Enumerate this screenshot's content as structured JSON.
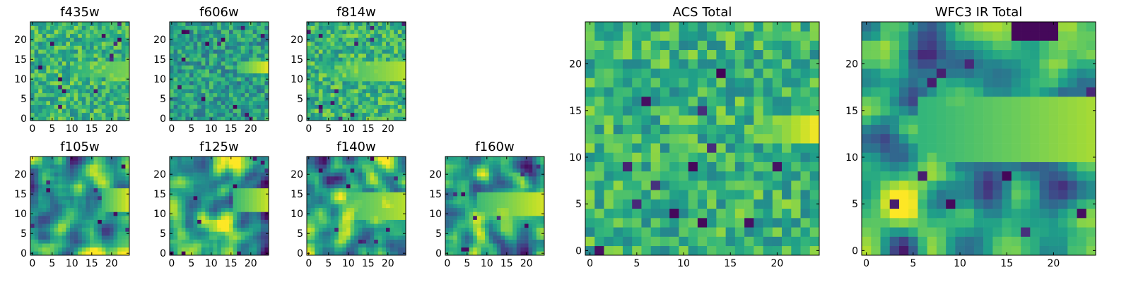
{
  "chart_data": {
    "type": "heatmap",
    "colormap": "viridis",
    "grid": false,
    "legend": "none",
    "grid_size": [
      25,
      25
    ],
    "panels": [
      {
        "id": "f435w",
        "title": "f435w",
        "xlim": [
          0,
          24
        ],
        "ylim": [
          0,
          24
        ],
        "xticks": [
          0,
          5,
          10,
          15,
          20
        ],
        "yticks": [
          0,
          5,
          10,
          15,
          20
        ],
        "texture": "noisy-uniform",
        "bright_region": {
          "x": [
            10,
            24
          ],
          "y": [
            11,
            14
          ],
          "level": 0.55
        }
      },
      {
        "id": "f606w",
        "title": "f606w",
        "xlim": [
          0,
          24
        ],
        "ylim": [
          0,
          24
        ],
        "xticks": [
          0,
          5,
          10,
          15,
          20
        ],
        "yticks": [
          0,
          5,
          10,
          15,
          20
        ],
        "texture": "noisy-dim",
        "bright_region": {
          "x": [
            17,
            24
          ],
          "y": [
            12,
            14
          ],
          "level": 0.9
        }
      },
      {
        "id": "f814w",
        "title": "f814w",
        "xlim": [
          0,
          24
        ],
        "ylim": [
          0,
          24
        ],
        "xticks": [
          0,
          5,
          10,
          15,
          20
        ],
        "yticks": [
          0,
          5,
          10,
          15,
          20
        ],
        "texture": "noisy-uniform",
        "bright_region": {
          "x": [
            8,
            24
          ],
          "y": [
            10,
            14
          ],
          "level": 0.75
        }
      },
      {
        "id": "f105w",
        "title": "f105w",
        "xlim": [
          0,
          24
        ],
        "ylim": [
          0,
          24
        ],
        "xticks": [
          0,
          5,
          10,
          15,
          20
        ],
        "yticks": [
          0,
          5,
          10,
          15,
          20
        ],
        "texture": "smooth",
        "bright_region": {
          "x": [
            18,
            24
          ],
          "y": [
            11,
            16
          ],
          "level": 0.85
        }
      },
      {
        "id": "f125w",
        "title": "f125w",
        "xlim": [
          0,
          24
        ],
        "ylim": [
          0,
          24
        ],
        "xticks": [
          0,
          5,
          10,
          15,
          20
        ],
        "yticks": [
          0,
          5,
          10,
          15,
          20
        ],
        "texture": "smooth",
        "bright_region": {
          "x": [
            16,
            24
          ],
          "y": [
            11,
            16
          ],
          "level": 0.8
        }
      },
      {
        "id": "f140w",
        "title": "f140w",
        "xlim": [
          0,
          24
        ],
        "ylim": [
          0,
          24
        ],
        "xticks": [
          0,
          5,
          10,
          15,
          20
        ],
        "yticks": [
          0,
          5,
          10,
          15,
          20
        ],
        "texture": "smooth",
        "bright_region": {
          "x": [
            8,
            24
          ],
          "y": [
            9,
            15
          ],
          "level": 0.75
        }
      },
      {
        "id": "f160w",
        "title": "f160w",
        "xlim": [
          0,
          24
        ],
        "ylim": [
          0,
          24
        ],
        "xticks": [
          0,
          5,
          10,
          15,
          20
        ],
        "yticks": [
          0,
          5,
          10,
          15,
          20
        ],
        "texture": "smooth",
        "bright_region": {
          "x": [
            8,
            24
          ],
          "y": [
            10,
            15
          ],
          "level": 0.85
        }
      },
      {
        "id": "acs-total",
        "title": "ACS Total",
        "xlim": [
          0,
          24
        ],
        "ylim": [
          0,
          24
        ],
        "xticks": [
          0,
          5,
          10,
          15,
          20
        ],
        "yticks": [
          0,
          5,
          10,
          15,
          20
        ],
        "texture": "noisy-uniform",
        "bright_region": {
          "x": [
            18,
            24
          ],
          "y": [
            12,
            14
          ],
          "level": 0.95
        }
      },
      {
        "id": "wfc3-ir-total",
        "title": "WFC3 IR Total",
        "xlim": [
          0,
          24
        ],
        "ylim": [
          0,
          24
        ],
        "xticks": [
          0,
          5,
          10,
          15,
          20
        ],
        "yticks": [
          0,
          5,
          10,
          15,
          20
        ],
        "texture": "smooth",
        "bright_region": {
          "x": [
            6,
            24
          ],
          "y": [
            10,
            16
          ],
          "level": 0.7
        },
        "dark_region": {
          "x": [
            16,
            20
          ],
          "y": [
            23,
            24
          ]
        }
      }
    ]
  }
}
